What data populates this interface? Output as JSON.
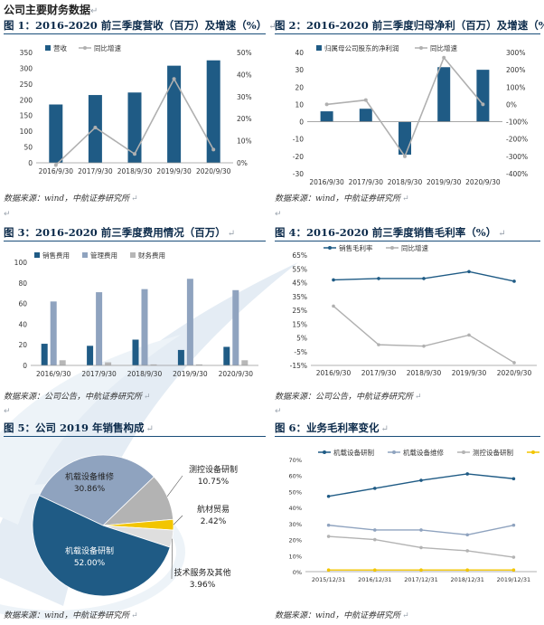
{
  "page": {
    "title": "公司主要财务数据",
    "return_mark": "↵"
  },
  "figures": [
    {
      "id": "fig1",
      "title": "图 1：2016-2020 前三季度营收（百万）及增速（%）",
      "source": "数据来源：wind，中航证券研究所"
    },
    {
      "id": "fig2",
      "title": "图 2：2016-2020 前三季度归母净利（百万）及增速（%）",
      "source": "数据来源：wind，中航证券研究所"
    },
    {
      "id": "fig3",
      "title": "图 3：2016-2020 前三季度费用情况（百万）",
      "source": "数据来源：公司公告，中航证券研究所"
    },
    {
      "id": "fig4",
      "title": "图 4：2016-2020 前三季度销售毛利率（%）",
      "source": "数据来源：公司公告，中航证券研究所"
    },
    {
      "id": "fig5",
      "title": "图 5：公司 2019 年销售构成",
      "source": "数据来源：wind，中航证券研究所"
    },
    {
      "id": "fig6",
      "title": "图 6：业务毛利率变化",
      "source": "数据来源：wind，中航证券研究所"
    }
  ],
  "chart_data": [
    {
      "id": "fig1",
      "type": "bar+line",
      "categories": [
        "2016/9/30",
        "2017/9/30",
        "2018/9/30",
        "2019/9/30",
        "2020/9/30"
      ],
      "series": [
        {
          "name": "营收",
          "type": "bar",
          "axis": "left",
          "color": "#1f5b85",
          "values": [
            185,
            215,
            223,
            308,
            325
          ]
        },
        {
          "name": "同比增速",
          "type": "line",
          "axis": "right",
          "color": "#b0b0b0",
          "values": [
            -1,
            16,
            4,
            38,
            6
          ]
        }
      ],
      "yleft": {
        "min": 0,
        "max": 350,
        "step": 50,
        "ticks": [
          "0",
          "50",
          "100",
          "150",
          "200",
          "250",
          "300",
          "350"
        ]
      },
      "yright": {
        "min": 0,
        "max": 50,
        "step": 10,
        "ticks": [
          "0%",
          "10%",
          "20%",
          "30%",
          "40%",
          "50%"
        ]
      },
      "legend": "top"
    },
    {
      "id": "fig2",
      "type": "bar+line",
      "categories": [
        "2016/9/30",
        "2017/9/30",
        "2018/9/30",
        "2019/9/30",
        "2020/9/30"
      ],
      "series": [
        {
          "name": "归属母公司股东的净利润",
          "type": "bar",
          "axis": "left",
          "color": "#1f5b85",
          "values": [
            6,
            7.5,
            -19,
            31.5,
            30
          ]
        },
        {
          "name": "同比增速",
          "type": "line",
          "axis": "right",
          "color": "#b0b0b0",
          "values": [
            0,
            25,
            -300,
            270,
            0
          ]
        }
      ],
      "yleft": {
        "min": -30,
        "max": 40,
        "step": 10,
        "ticks": [
          "-30",
          "-20",
          "-10",
          "0",
          "10",
          "20",
          "30",
          "40"
        ]
      },
      "yright": {
        "min": -400,
        "max": 300,
        "step": 100,
        "ticks": [
          "-400%",
          "-300%",
          "-200%",
          "-100%",
          "0%",
          "100%",
          "200%",
          "300%"
        ]
      },
      "legend": "top"
    },
    {
      "id": "fig3",
      "type": "bar",
      "categories": [
        "2016/9/30",
        "2017/9/30",
        "2018/9/30",
        "2019/9/30",
        "2020/9/30"
      ],
      "series": [
        {
          "name": "销售费用",
          "color": "#1f5b85",
          "values": [
            21,
            19,
            25,
            15,
            18
          ]
        },
        {
          "name": "管理费用",
          "color": "#8fa3bf",
          "values": [
            62,
            71,
            74,
            84,
            73
          ]
        },
        {
          "name": "财务费用",
          "color": "#b7b7b7",
          "values": [
            5,
            3,
            1,
            1,
            5
          ]
        }
      ],
      "ylim": [
        0,
        100
      ],
      "yticks": [
        "0",
        "20",
        "40",
        "60",
        "80",
        "100"
      ],
      "legend": "top"
    },
    {
      "id": "fig4",
      "type": "line",
      "categories": [
        "2016/9/30",
        "2017/9/30",
        "2018/9/30",
        "2019/9/30",
        "2020/9/30"
      ],
      "series": [
        {
          "name": "销售毛利率",
          "color": "#1f5b85",
          "values": [
            47,
            48,
            48,
            53,
            46
          ]
        },
        {
          "name": "同比增速",
          "color": "#b0b0b0",
          "values": [
            28,
            0,
            -1,
            7,
            -13
          ]
        }
      ],
      "ylim": [
        -15,
        65
      ],
      "yticks": [
        "-15%",
        "-5%",
        "5%",
        "15%",
        "25%",
        "35%",
        "45%",
        "55%",
        "65%"
      ],
      "legend": "top"
    },
    {
      "id": "fig5",
      "type": "pie",
      "slices": [
        {
          "name": "机载设备维修",
          "value": 30.86,
          "label": "30.86%",
          "color": "#8fa3bf"
        },
        {
          "name": "测控设备研制",
          "value": 10.75,
          "label": "10.75%",
          "color": "#b3b3b3"
        },
        {
          "name": "航材贸易",
          "value": 2.42,
          "label": "2.42%",
          "color": "#f2c500"
        },
        {
          "name": "技术服务及其他",
          "value": 3.96,
          "label": "3.96%",
          "color": "#dedede"
        },
        {
          "name": "机载设备研制",
          "value": 52.0,
          "label": "52.00%",
          "color": "#1f5b85"
        }
      ]
    },
    {
      "id": "fig6",
      "type": "line",
      "categories": [
        "2015/12/31",
        "2016/12/31",
        "2017/12/31",
        "2018/12/31",
        "2019/12/31"
      ],
      "series": [
        {
          "name": "机载设备研制",
          "color": "#1f5b85",
          "values": [
            47,
            52,
            57,
            61,
            58
          ]
        },
        {
          "name": "机载设备维修",
          "color": "#8fa3bf",
          "values": [
            29,
            26,
            26,
            23,
            29
          ]
        },
        {
          "name": "测控设备研制",
          "color": "#b3b3b3",
          "values": [
            22,
            20,
            15,
            13,
            9
          ]
        },
        {
          "name": "航材贸易",
          "color": "#f2c500",
          "values": [
            1,
            1,
            1,
            1,
            1
          ]
        }
      ],
      "ylim": [
        0,
        70
      ],
      "yticks": [
        "0%",
        "10%",
        "20%",
        "30%",
        "40%",
        "50%",
        "60%",
        "70%"
      ],
      "legend": "top"
    }
  ]
}
